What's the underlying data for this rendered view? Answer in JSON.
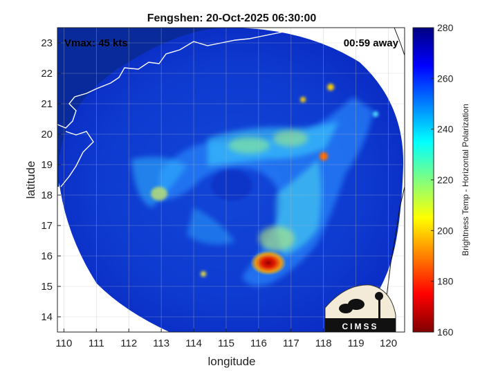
{
  "figure": {
    "title": "Fengshen: 20-Oct-2025 06:30:00",
    "vmax_text": "Vmax: 45 kts",
    "time_away_text": "00:59 away",
    "xlabel": "longitude",
    "ylabel": "latitude",
    "colorbar_label": "Brightness Temp - Horizontal Polarization",
    "logo_text": "CIMSS"
  },
  "chart_data": {
    "type": "heatmap",
    "title": "Fengshen: 20-Oct-2025 06:30:00",
    "xlabel": "longitude",
    "ylabel": "latitude",
    "xlim": [
      109.8,
      120.5
    ],
    "ylim": [
      13.5,
      23.5
    ],
    "xticks": [
      110,
      111,
      112,
      113,
      114,
      115,
      116,
      117,
      118,
      119,
      120
    ],
    "yticks": [
      14,
      15,
      16,
      17,
      18,
      19,
      20,
      21,
      22,
      23
    ],
    "grid": true,
    "colorbar": {
      "label": "Brightness Temp - Horizontal Polarization",
      "range": [
        160,
        280
      ],
      "ticks": [
        160,
        180,
        200,
        220,
        240,
        260,
        280
      ],
      "colormap": "jet"
    },
    "annotations": [
      "Vmax: 45 kts",
      "00:59 away"
    ],
    "swath": {
      "center_lon": 115.1,
      "center_lat": 18.3,
      "background_temp": 268
    },
    "features": [
      {
        "lon": 116.4,
        "lat": 15.9,
        "temp": 178
      },
      {
        "lon": 116.0,
        "lat": 15.5,
        "temp": 195
      },
      {
        "lon": 116.7,
        "lat": 16.3,
        "temp": 232
      },
      {
        "lon": 117.0,
        "lat": 17.2,
        "temp": 236
      },
      {
        "lon": 117.2,
        "lat": 18.3,
        "temp": 236
      },
      {
        "lon": 117.4,
        "lat": 19.4,
        "temp": 232
      },
      {
        "lon": 117.5,
        "lat": 20.2,
        "temp": 228
      },
      {
        "lon": 116.6,
        "lat": 20.5,
        "temp": 236
      },
      {
        "lon": 115.6,
        "lat": 19.9,
        "temp": 236
      },
      {
        "lon": 115.0,
        "lat": 19.3,
        "temp": 240
      },
      {
        "lon": 116.2,
        "lat": 19.0,
        "temp": 238
      },
      {
        "lon": 116.4,
        "lat": 18.5,
        "temp": 244
      },
      {
        "lon": 115.6,
        "lat": 17.5,
        "temp": 244
      },
      {
        "lon": 114.6,
        "lat": 18.9,
        "temp": 246
      },
      {
        "lon": 113.6,
        "lat": 19.3,
        "temp": 244
      },
      {
        "lon": 113.1,
        "lat": 18.2,
        "temp": 228
      },
      {
        "lon": 113.8,
        "lat": 17.3,
        "temp": 246
      },
      {
        "lon": 118.1,
        "lat": 19.3,
        "temp": 200
      },
      {
        "lon": 118.3,
        "lat": 21.6,
        "temp": 215
      },
      {
        "lon": 117.5,
        "lat": 21.1,
        "temp": 215
      },
      {
        "lon": 116.8,
        "lat": 21.0,
        "temp": 236
      },
      {
        "lon": 114.5,
        "lat": 15.4,
        "temp": 228
      },
      {
        "lon": 111.8,
        "lat": 21.0,
        "temp": 252
      }
    ]
  }
}
